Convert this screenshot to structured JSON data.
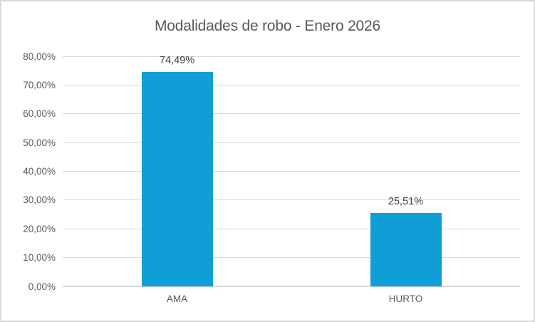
{
  "chart_data": {
    "type": "bar",
    "title": "Modalidades de robo - Enero 2026",
    "categories": [
      "AMA",
      "HURTO"
    ],
    "values": [
      74.49,
      25.51
    ],
    "data_labels": [
      "74,49%",
      "25,51%"
    ],
    "xlabel": "",
    "ylabel": "",
    "ylim": [
      0,
      80
    ],
    "y_tick_values": [
      0,
      10,
      20,
      30,
      40,
      50,
      60,
      70,
      80
    ],
    "y_tick_labels": [
      "0,00%",
      "10,00%",
      "20,00%",
      "30,00%",
      "40,00%",
      "50,00%",
      "60,00%",
      "70,00%",
      "80,00%"
    ],
    "grid": true,
    "legend": false,
    "colors": {
      "bar_fill": "#0f9ed5",
      "gridline": "#d9d9d9",
      "axis_line": "#d7d7d7",
      "title_text": "#595959",
      "axis_text": "#595959",
      "data_label_text": "#404040",
      "frame_border": "#d9d9d9",
      "background": "#ffffff"
    }
  }
}
